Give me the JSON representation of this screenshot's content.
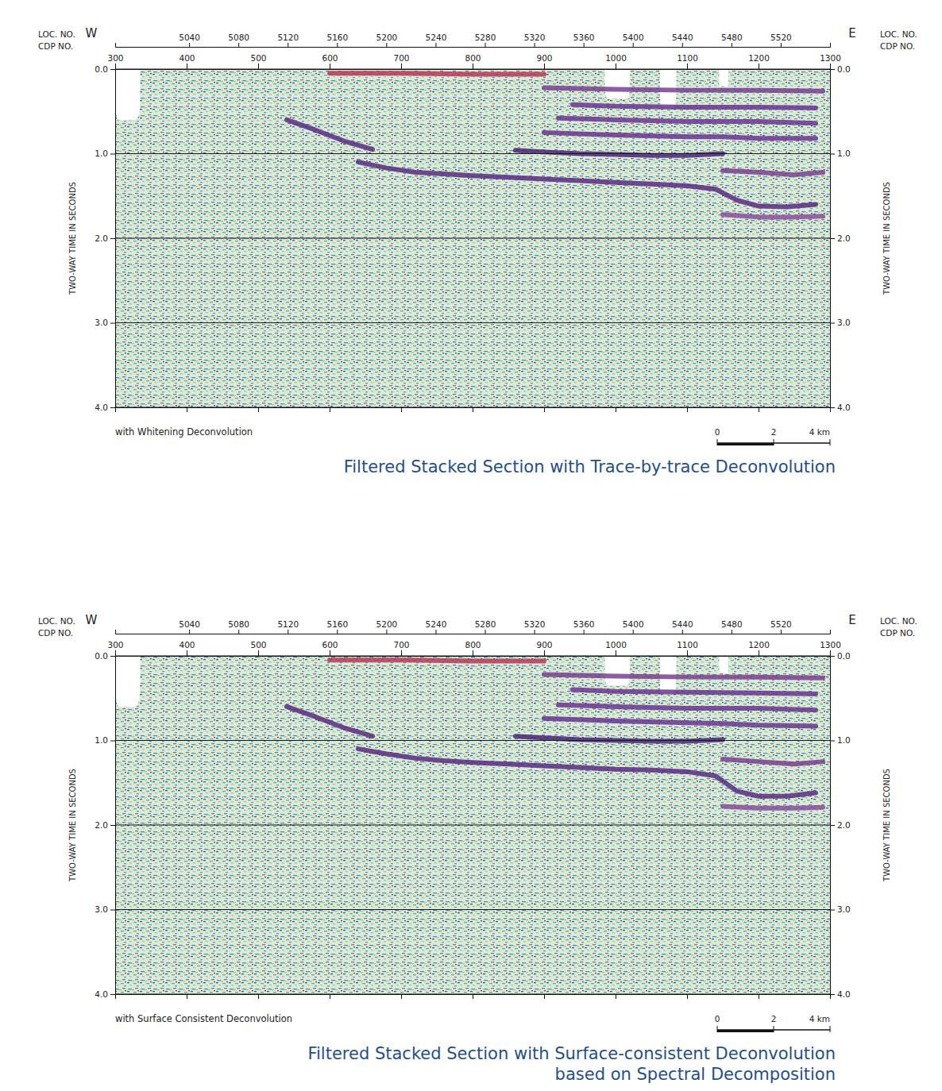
{
  "chart_data": [
    {
      "type": "seismic_section",
      "title": [
        "Filtered Stacked Section with Trace-by-trace Deconvolution"
      ],
      "subtitle": "with Whitening Deconvolution",
      "direction_labels": [
        "W",
        "E"
      ],
      "x_label": "CDP NO.",
      "x2_label": "LOC. NO.",
      "y_label": "TWO-WAY TIME IN SECONDS",
      "xlim": [
        300,
        1300
      ],
      "xticks": [
        300,
        400,
        500,
        600,
        700,
        800,
        900,
        1000,
        1100,
        1200,
        1300
      ],
      "x2lim": [
        4980,
        5560
      ],
      "x2ticks": [
        5040,
        5080,
        5120,
        5160,
        5200,
        5240,
        5280,
        5320,
        5360,
        5400,
        5440,
        5480,
        5520
      ],
      "ylim": [
        0,
        4
      ],
      "yticks": [
        {
          "value": 0,
          "label": "0.0"
        },
        {
          "value": 1,
          "label": "1.0"
        },
        {
          "value": 2,
          "label": "2.0"
        },
        {
          "value": 3,
          "label": "3.0"
        },
        {
          "value": 4,
          "label": "4.0"
        }
      ],
      "grid": true,
      "scale_bar": [
        0,
        2,
        {
          "value": 4,
          "label": "4 km"
        }
      ],
      "no_data": [
        {
          "x": [
            300,
            335
          ],
          "depth": 0.6
        },
        {
          "x": [
            985,
            1020
          ],
          "depth": 0.35
        },
        {
          "x": [
            1062,
            1085
          ],
          "depth": 0.45
        },
        {
          "x": [
            1145,
            1158
          ],
          "depth": 0.2
        }
      ],
      "series": [
        {
          "color": "#b83a5a",
          "x": [
            600,
            700,
            800,
            900
          ],
          "values": [
            0.05,
            0.05,
            0.06,
            0.06
          ]
        },
        {
          "color": "#5b2c83",
          "x": [
            540,
            580,
            620,
            660
          ],
          "values": [
            0.6,
            0.72,
            0.85,
            0.95
          ]
        },
        {
          "color": "#5b2c83",
          "x": [
            640,
            680,
            720,
            760,
            800,
            850,
            900,
            950,
            1000,
            1050,
            1100,
            1140,
            1170,
            1200,
            1240,
            1280
          ],
          "values": [
            1.1,
            1.17,
            1.22,
            1.24,
            1.26,
            1.28,
            1.3,
            1.32,
            1.34,
            1.36,
            1.38,
            1.42,
            1.55,
            1.62,
            1.63,
            1.6
          ]
        },
        {
          "color": "#4a2475",
          "x": [
            860,
            900,
            950,
            1000,
            1050,
            1100,
            1150
          ],
          "values": [
            0.96,
            0.98,
            1.0,
            1.01,
            1.02,
            1.02,
            1.0
          ]
        },
        {
          "color": "#6a3590",
          "x": [
            900,
            1000,
            1100,
            1150,
            1200,
            1280
          ],
          "values": [
            0.75,
            0.78,
            0.8,
            0.8,
            0.82,
            0.82
          ]
        },
        {
          "color": "#6a3590",
          "x": [
            920,
            1000,
            1100,
            1200,
            1280
          ],
          "values": [
            0.58,
            0.6,
            0.62,
            0.62,
            0.64
          ]
        },
        {
          "color": "#6a3590",
          "x": [
            940,
            1000,
            1100,
            1200,
            1280
          ],
          "values": [
            0.42,
            0.44,
            0.45,
            0.45,
            0.46
          ]
        },
        {
          "color": "#7a3f8f",
          "x": [
            900,
            1000,
            1100,
            1200,
            1290
          ],
          "values": [
            0.22,
            0.24,
            0.25,
            0.25,
            0.26
          ]
        },
        {
          "color": "#7a3f8f",
          "x": [
            1150,
            1200,
            1250,
            1290
          ],
          "values": [
            1.2,
            1.22,
            1.25,
            1.22
          ]
        },
        {
          "color": "#8a4f9a",
          "x": [
            1150,
            1200,
            1250,
            1290
          ],
          "values": [
            1.72,
            1.75,
            1.75,
            1.74
          ]
        }
      ]
    },
    {
      "type": "seismic_section",
      "title": [
        "Filtered Stacked Section with Surface-consistent Deconvolution",
        "based on Spectral Decomposition"
      ],
      "subtitle": "with Surface Consistent Deconvolution",
      "direction_labels": [
        "W",
        "E"
      ],
      "x_label": "CDP NO.",
      "x2_label": "LOC. NO.",
      "y_label": "TWO-WAY TIME IN SECONDS",
      "xlim": [
        300,
        1300
      ],
      "xticks": [
        300,
        400,
        500,
        600,
        700,
        800,
        900,
        1000,
        1100,
        1200,
        1300
      ],
      "x2lim": [
        4980,
        5560
      ],
      "x2ticks": [
        5040,
        5080,
        5120,
        5160,
        5200,
        5240,
        5280,
        5320,
        5360,
        5400,
        5440,
        5480,
        5520
      ],
      "ylim": [
        0,
        4
      ],
      "yticks": [
        {
          "value": 0,
          "label": "0.0"
        },
        {
          "value": 1,
          "label": "1.0"
        },
        {
          "value": 2,
          "label": "2.0"
        },
        {
          "value": 3,
          "label": "3.0"
        },
        {
          "value": 4,
          "label": "4.0"
        }
      ],
      "grid": true,
      "scale_bar": [
        0,
        2,
        {
          "value": 4,
          "label": "4 km"
        }
      ],
      "no_data": [
        {
          "x": [
            300,
            335
          ],
          "depth": 0.6
        },
        {
          "x": [
            985,
            1020
          ],
          "depth": 0.35
        },
        {
          "x": [
            1062,
            1085
          ],
          "depth": 0.45
        },
        {
          "x": [
            1145,
            1158
          ],
          "depth": 0.2
        }
      ],
      "series": [
        {
          "color": "#b83a5a",
          "x": [
            600,
            700,
            800,
            900
          ],
          "values": [
            0.05,
            0.05,
            0.06,
            0.06
          ]
        },
        {
          "color": "#5b2c83",
          "x": [
            540,
            580,
            620,
            660
          ],
          "values": [
            0.6,
            0.72,
            0.85,
            0.95
          ]
        },
        {
          "color": "#5b2c83",
          "x": [
            640,
            680,
            720,
            760,
            800,
            850,
            900,
            950,
            1000,
            1050,
            1100,
            1140,
            1170,
            1200,
            1240,
            1280
          ],
          "values": [
            1.1,
            1.16,
            1.21,
            1.24,
            1.26,
            1.28,
            1.3,
            1.32,
            1.34,
            1.35,
            1.37,
            1.42,
            1.6,
            1.66,
            1.66,
            1.62
          ]
        },
        {
          "color": "#4a2475",
          "x": [
            860,
            900,
            950,
            1000,
            1050,
            1100,
            1150
          ],
          "values": [
            0.95,
            0.97,
            0.99,
            1.0,
            1.01,
            1.01,
            0.99
          ]
        },
        {
          "color": "#6a3590",
          "x": [
            900,
            1000,
            1100,
            1150,
            1200,
            1280
          ],
          "values": [
            0.74,
            0.77,
            0.79,
            0.8,
            0.82,
            0.83
          ]
        },
        {
          "color": "#6a3590",
          "x": [
            920,
            1000,
            1100,
            1200,
            1280
          ],
          "values": [
            0.58,
            0.6,
            0.62,
            0.62,
            0.64
          ]
        },
        {
          "color": "#6a3590",
          "x": [
            940,
            1000,
            1100,
            1200,
            1280
          ],
          "values": [
            0.4,
            0.42,
            0.43,
            0.44,
            0.45
          ]
        },
        {
          "color": "#7a3f8f",
          "x": [
            900,
            1000,
            1100,
            1200,
            1290
          ],
          "values": [
            0.22,
            0.24,
            0.25,
            0.25,
            0.26
          ]
        },
        {
          "color": "#7a3f8f",
          "x": [
            1150,
            1200,
            1250,
            1290
          ],
          "values": [
            1.22,
            1.25,
            1.28,
            1.25
          ]
        },
        {
          "color": "#8a4f9a",
          "x": [
            1150,
            1200,
            1250,
            1290
          ],
          "values": [
            1.78,
            1.8,
            1.8,
            1.79
          ]
        }
      ]
    }
  ]
}
